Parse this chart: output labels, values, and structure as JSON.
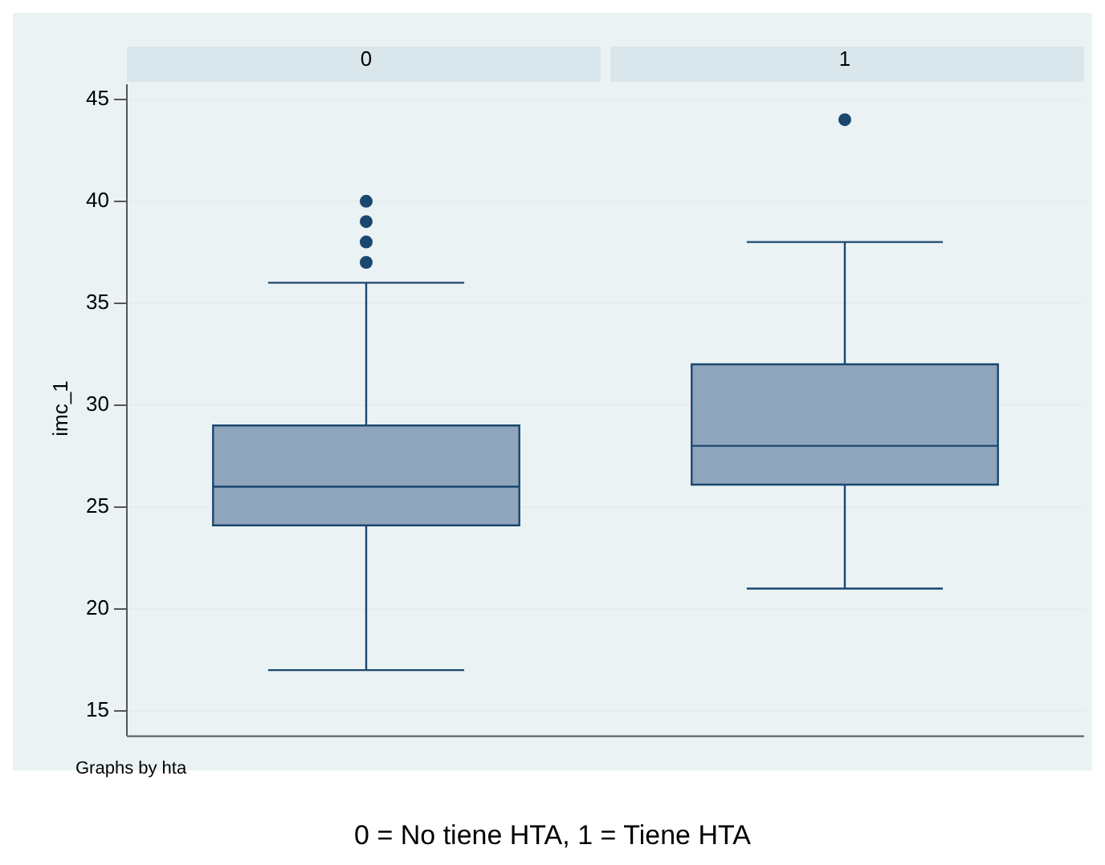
{
  "chart_data": {
    "type": "box",
    "ylabel": "imc_1",
    "categories": [
      "0",
      "1"
    ],
    "color": "#8fa5bc",
    "ylim": [
      13.8,
      45.7
    ],
    "yticks": [
      15,
      20,
      25,
      30,
      35,
      40,
      45
    ],
    "grid": "y",
    "legend": false,
    "boxes": [
      {
        "low": 17,
        "q1": 24.1,
        "median": 26,
        "q3": 29,
        "high": 36,
        "outliers": [
          37,
          38,
          39,
          40
        ]
      },
      {
        "low": 21,
        "q1": 26.1,
        "median": 28,
        "q3": 32,
        "high": 38,
        "outliers": [
          44
        ]
      }
    ],
    "annotations": [
      "Graphs by hta",
      "0 = No tiene HTA, 1 = Tiene HTA"
    ]
  }
}
